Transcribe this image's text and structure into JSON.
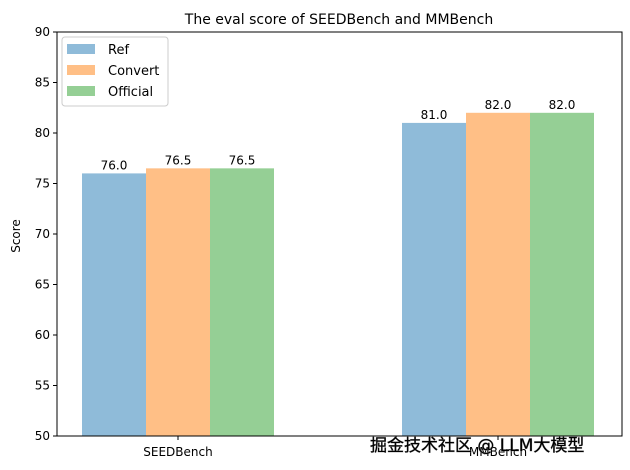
{
  "chart_data": {
    "type": "bar",
    "title": "The eval score of SEEDBench and MMBench",
    "xlabel": "",
    "ylabel": "Score",
    "categories": [
      "SEEDBench",
      "MMBench"
    ],
    "series": [
      {
        "name": "Ref",
        "values": [
          76.0,
          81.0
        ],
        "color": "#1f77b4"
      },
      {
        "name": "Convert",
        "values": [
          76.5,
          82.0
        ],
        "color": "#ff7f0e"
      },
      {
        "name": "Official",
        "values": [
          76.5,
          82.0
        ],
        "color": "#2ca02c"
      }
    ],
    "data_labels": [
      [
        "76.0",
        "81.0"
      ],
      [
        "76.5",
        "82.0"
      ],
      [
        "76.5",
        "82.0"
      ]
    ],
    "bar_opacity": 0.5,
    "ylim": [
      50,
      90
    ],
    "yticks": [
      50,
      55,
      60,
      65,
      70,
      75,
      80,
      85,
      90
    ],
    "grid": false,
    "legend_position": "top-left"
  },
  "watermark": "掘金技术社区 @ LLM大模型"
}
